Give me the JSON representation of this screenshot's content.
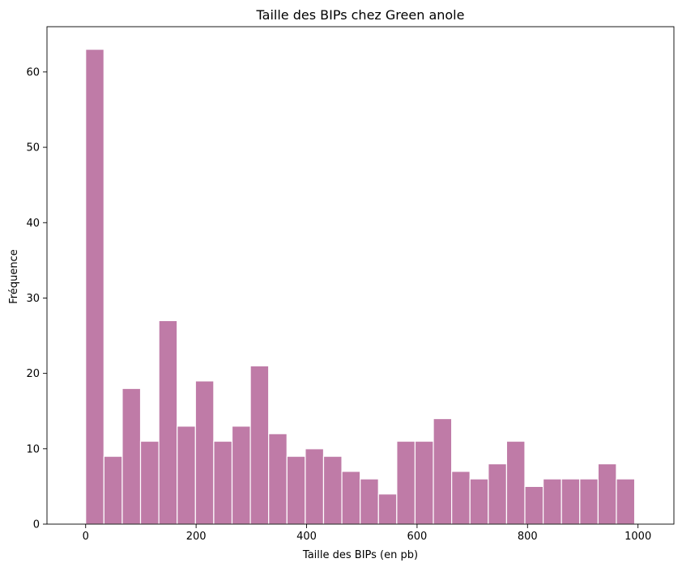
{
  "chart_data": {
    "type": "bar",
    "title": "Taille des BIPs chez Green anole",
    "xlabel": "Taille des BIPs (en pb)",
    "ylabel": "Fréquence",
    "bin_edges": [
      0,
      33.13,
      66.27,
      99.4,
      132.53,
      165.67,
      198.8,
      231.93,
      265.07,
      298.2,
      331.33,
      364.47,
      397.6,
      430.73,
      463.87,
      497.0,
      530.13,
      563.27,
      596.4,
      629.53,
      662.67,
      695.8,
      728.93,
      762.07,
      795.2,
      828.33,
      861.47,
      894.6,
      927.73,
      960.87,
      994.0
    ],
    "values": [
      63,
      9,
      18,
      11,
      27,
      13,
      19,
      11,
      13,
      21,
      12,
      9,
      10,
      9,
      7,
      6,
      4,
      11,
      11,
      14,
      7,
      6,
      8,
      11,
      5,
      6,
      6,
      6,
      8,
      6
    ],
    "xlim": [
      -70,
      1065
    ],
    "ylim": [
      0,
      66
    ],
    "xticks": [
      0,
      200,
      400,
      600,
      800,
      1000
    ],
    "yticks": [
      0,
      10,
      20,
      30,
      40,
      50,
      60
    ],
    "bar_color": "#bf7ba7",
    "edge_color": "#ffffff",
    "grid": false,
    "legend": "none"
  }
}
